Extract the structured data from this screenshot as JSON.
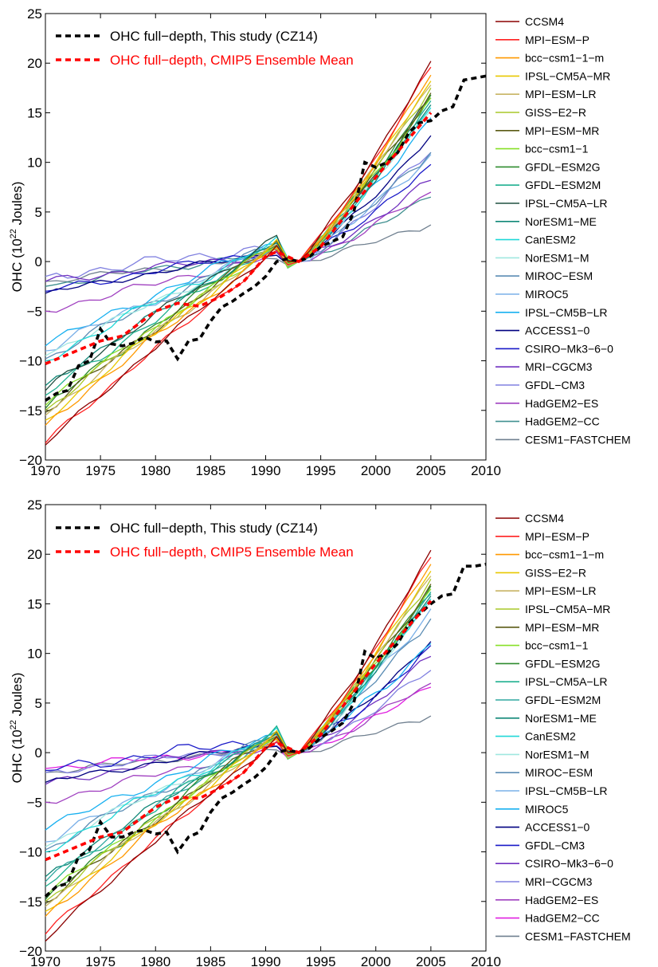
{
  "chart_data": [
    {
      "type": "line",
      "ylabel_prefix": "OHC (10",
      "ylabel_exp": "22",
      "ylabel_suffix": " Joules)",
      "xlim": [
        1970,
        2010
      ],
      "ylim": [
        -20,
        25
      ],
      "xticks": [
        1970,
        1975,
        1980,
        1985,
        1990,
        1995,
        2000,
        2005,
        2010
      ],
      "yticks": [
        -20,
        -15,
        -10,
        -5,
        0,
        5,
        10,
        15,
        20,
        25
      ],
      "grid": false,
      "highlight_series": [
        {
          "name": "OHC full−depth, This study (CZ14)",
          "color": "#000000",
          "points": [
            [
              1970,
              -14.0
            ],
            [
              1971,
              -13.3
            ],
            [
              1972,
              -13.0
            ],
            [
              1973,
              -10.5
            ],
            [
              1974,
              -10.0
            ],
            [
              1975,
              -6.8
            ],
            [
              1976,
              -8.3
            ],
            [
              1977,
              -8.5
            ],
            [
              1978,
              -8.2
            ],
            [
              1979,
              -7.6
            ],
            [
              1980,
              -8.1
            ],
            [
              1981,
              -8.0
            ],
            [
              1982,
              -9.8
            ],
            [
              1983,
              -8.0
            ],
            [
              1984,
              -7.8
            ],
            [
              1985,
              -6.0
            ],
            [
              1986,
              -4.6
            ],
            [
              1987,
              -4.0
            ],
            [
              1988,
              -3.2
            ],
            [
              1989,
              -2.5
            ],
            [
              1990,
              -1.5
            ],
            [
              1991,
              0.0
            ],
            [
              1992,
              0.3
            ],
            [
              1993,
              0.0
            ],
            [
              1994,
              0.5
            ],
            [
              1995,
              1.5
            ],
            [
              1996,
              2.0
            ],
            [
              1997,
              2.5
            ],
            [
              1998,
              5.0
            ],
            [
              1999,
              10.0
            ],
            [
              2000,
              9.5
            ],
            [
              2001,
              10.0
            ],
            [
              2002,
              11.0
            ],
            [
              2003,
              13.0
            ],
            [
              2004,
              14.0
            ],
            [
              2005,
              14.2
            ],
            [
              2006,
              15.2
            ],
            [
              2007,
              15.6
            ],
            [
              2008,
              18.3
            ],
            [
              2009,
              18.5
            ],
            [
              2010,
              18.7
            ]
          ]
        },
        {
          "name": "OHC full−depth, CMIP5 Ensemble Mean",
          "color": "#ff0000",
          "points": [
            [
              1970,
              -10.3
            ],
            [
              1975,
              -8.0
            ],
            [
              1977,
              -7.5
            ],
            [
              1980,
              -5.0
            ],
            [
              1982,
              -4.2
            ],
            [
              1984,
              -4.5
            ],
            [
              1986,
              -3.5
            ],
            [
              1988,
              -2.0
            ],
            [
              1990,
              0.5
            ],
            [
              1991,
              1.0
            ],
            [
              1993,
              0.0
            ],
            [
              1995,
              1.5
            ],
            [
              2000,
              8.5
            ],
            [
              2005,
              15.0
            ]
          ]
        }
      ],
      "series": [
        {
          "name": "CCSM4",
          "color": "#8b0000",
          "start": -18.5,
          "peak": 1.5,
          "end": 20.2,
          "wobble": 0.4
        },
        {
          "name": "MPI−ESM−P",
          "color": "#ff2020",
          "start": -18.3,
          "peak": 1.0,
          "end": 19.6,
          "wobble": 0.4
        },
        {
          "name": "bcc−csm1−1−m",
          "color": "#ff9900",
          "start": -16.5,
          "peak": 1.5,
          "end": 18.8,
          "wobble": 0.5
        },
        {
          "name": "IPSL−CM5A−MR",
          "color": "#e8c800",
          "start": -16.0,
          "peak": 1.8,
          "end": 18.2,
          "wobble": 0.5
        },
        {
          "name": "MPI−ESM−LR",
          "color": "#c8b464",
          "start": -15.5,
          "peak": 1.5,
          "end": 17.8,
          "wobble": 0.5
        },
        {
          "name": "GISS−E2−R",
          "color": "#a8c828",
          "start": -15.0,
          "peak": 1.8,
          "end": 17.5,
          "wobble": 0.5
        },
        {
          "name": "MPI−ESM−MR",
          "color": "#5a5a14",
          "start": -15.2,
          "peak": 2.0,
          "end": 17.0,
          "wobble": 0.5
        },
        {
          "name": "bcc−csm1−1",
          "color": "#88e028",
          "start": -14.5,
          "peak": 1.5,
          "end": 16.5,
          "wobble": 0.5
        },
        {
          "name": "GFDL−ESM2G",
          "color": "#2e8b2e",
          "start": -14.8,
          "peak": 2.2,
          "end": 16.8,
          "wobble": 0.6
        },
        {
          "name": "GFDL−ESM2M",
          "color": "#20b090",
          "start": -13.5,
          "peak": 2.0,
          "end": 16.2,
          "wobble": 0.6
        },
        {
          "name": "IPSL−CM5A−LR",
          "color": "#205040",
          "start": -13.0,
          "peak": 2.5,
          "end": 16.5,
          "wobble": 0.5
        },
        {
          "name": "NorESM1−ME",
          "color": "#108878",
          "start": -12.5,
          "peak": 2.0,
          "end": 15.8,
          "wobble": 0.5
        },
        {
          "name": "CanESM2",
          "color": "#20d8d8",
          "start": -10.0,
          "peak": 2.0,
          "end": 15.5,
          "wobble": 0.6
        },
        {
          "name": "NorESM1−M",
          "color": "#a0e8e0",
          "start": -9.5,
          "peak": 1.5,
          "end": 15.2,
          "wobble": 0.5
        },
        {
          "name": "MIROC−ESM",
          "color": "#5a8cb4",
          "start": -9.8,
          "peak": 1.8,
          "end": 11.0,
          "wobble": 0.6
        },
        {
          "name": "MIROC5",
          "color": "#7ab0e8",
          "start": -9.0,
          "peak": 1.5,
          "end": 10.8,
          "wobble": 0.6
        },
        {
          "name": "IPSL−CM5B−LR",
          "color": "#18b0f0",
          "start": -8.5,
          "peak": 2.0,
          "end": 14.5,
          "wobble": 0.6
        },
        {
          "name": "ACCESS1−0",
          "color": "#000080",
          "start": -3.2,
          "peak": 1.0,
          "end": 12.7,
          "wobble": 0.4
        },
        {
          "name": "CSIRO−Mk3−6−0",
          "color": "#1a1ac8",
          "start": -3.0,
          "peak": 1.2,
          "end": 9.8,
          "wobble": 0.5
        },
        {
          "name": "MRI−CGCM3",
          "color": "#7030c0",
          "start": -2.0,
          "peak": 0.8,
          "end": 8.2,
          "wobble": 0.5
        },
        {
          "name": "GFDL−CM3",
          "color": "#8080e0",
          "start": -1.5,
          "peak": 1.5,
          "end": 11.0,
          "wobble": 0.7
        },
        {
          "name": "HadGEM2−ES",
          "color": "#a040c0",
          "start": -5.0,
          "peak": 0.6,
          "end": 7.0,
          "wobble": 0.5
        },
        {
          "name": "HadGEM2−CC",
          "color": "#409090",
          "start": -2.5,
          "peak": 1.0,
          "end": 6.5,
          "wobble": 0.5
        },
        {
          "name": "CESM1−FASTCHEM",
          "color": "#708090",
          "start": -2.0,
          "peak": 0.5,
          "end": 3.7,
          "wobble": 0.4
        }
      ]
    },
    {
      "type": "line",
      "ylabel_prefix": "OHC (10",
      "ylabel_exp": "22",
      "ylabel_suffix": " Joules)",
      "xlim": [
        1970,
        2010
      ],
      "ylim": [
        -20,
        25
      ],
      "xticks": [
        1970,
        1975,
        1980,
        1985,
        1990,
        1995,
        2000,
        2005,
        2010
      ],
      "yticks": [
        -20,
        -15,
        -10,
        -5,
        0,
        5,
        10,
        15,
        20,
        25
      ],
      "grid": false,
      "highlight_series": [
        {
          "name": "OHC full−depth, This study (CZ14)",
          "color": "#000000",
          "points": [
            [
              1970,
              -14.5
            ],
            [
              1971,
              -13.5
            ],
            [
              1972,
              -13.2
            ],
            [
              1973,
              -10.5
            ],
            [
              1974,
              -9.8
            ],
            [
              1975,
              -7.0
            ],
            [
              1976,
              -8.5
            ],
            [
              1977,
              -8.5
            ],
            [
              1978,
              -8.0
            ],
            [
              1979,
              -7.8
            ],
            [
              1980,
              -8.2
            ],
            [
              1981,
              -8.0
            ],
            [
              1982,
              -10.0
            ],
            [
              1983,
              -8.5
            ],
            [
              1984,
              -8.0
            ],
            [
              1985,
              -6.0
            ],
            [
              1986,
              -4.6
            ],
            [
              1987,
              -4.0
            ],
            [
              1988,
              -3.2
            ],
            [
              1989,
              -2.5
            ],
            [
              1990,
              -1.5
            ],
            [
              1991,
              0.0
            ],
            [
              1992,
              0.3
            ],
            [
              1993,
              0.0
            ],
            [
              1994,
              0.5
            ],
            [
              1995,
              1.5
            ],
            [
              1996,
              2.2
            ],
            [
              1997,
              3.0
            ],
            [
              1998,
              5.0
            ],
            [
              1999,
              10.2
            ],
            [
              2000,
              9.5
            ],
            [
              2001,
              10.0
            ],
            [
              2002,
              11.0
            ],
            [
              2003,
              13.0
            ],
            [
              2004,
              14.0
            ],
            [
              2005,
              15.0
            ],
            [
              2006,
              15.8
            ],
            [
              2007,
              16.0
            ],
            [
              2008,
              18.8
            ],
            [
              2009,
              18.8
            ],
            [
              2010,
              19.0
            ]
          ]
        },
        {
          "name": "OHC full−depth, CMIP5 Ensemble Mean",
          "color": "#ff0000",
          "points": [
            [
              1970,
              -10.8
            ],
            [
              1975,
              -8.5
            ],
            [
              1977,
              -8.0
            ],
            [
              1980,
              -5.5
            ],
            [
              1982,
              -4.5
            ],
            [
              1984,
              -4.6
            ],
            [
              1986,
              -3.5
            ],
            [
              1988,
              -2.0
            ],
            [
              1990,
              0.5
            ],
            [
              1991,
              1.0
            ],
            [
              1993,
              0.0
            ],
            [
              1995,
              1.8
            ],
            [
              2000,
              9.0
            ],
            [
              2005,
              15.3
            ]
          ]
        }
      ],
      "series": [
        {
          "name": "CCSM4",
          "color": "#8b0000",
          "start": -19.0,
          "peak": 1.5,
          "end": 20.4,
          "wobble": 0.4
        },
        {
          "name": "MPI−ESM−P",
          "color": "#ff2020",
          "start": -18.3,
          "peak": 1.0,
          "end": 19.7,
          "wobble": 0.4
        },
        {
          "name": "bcc−csm1−1−m",
          "color": "#ff9900",
          "start": -16.5,
          "peak": 1.5,
          "end": 19.0,
          "wobble": 0.5
        },
        {
          "name": "GISS−E2−R",
          "color": "#e8c800",
          "start": -16.0,
          "peak": 1.8,
          "end": 18.3,
          "wobble": 0.5
        },
        {
          "name": "MPI−ESM−LR",
          "color": "#c8b464",
          "start": -15.5,
          "peak": 1.5,
          "end": 17.8,
          "wobble": 0.5
        },
        {
          "name": "IPSL−CM5A−MR",
          "color": "#a8c828",
          "start": -15.0,
          "peak": 1.8,
          "end": 17.5,
          "wobble": 0.5
        },
        {
          "name": "MPI−ESM−MR",
          "color": "#5a5a14",
          "start": -15.2,
          "peak": 2.0,
          "end": 17.0,
          "wobble": 0.5
        },
        {
          "name": "bcc−csm1−1",
          "color": "#88e028",
          "start": -14.5,
          "peak": 1.5,
          "end": 16.5,
          "wobble": 0.5
        },
        {
          "name": "GFDL−ESM2G",
          "color": "#2e8b2e",
          "start": -14.8,
          "peak": 2.2,
          "end": 16.8,
          "wobble": 0.6
        },
        {
          "name": "IPSL−CM5A−LR",
          "color": "#20b090",
          "start": -13.5,
          "peak": 2.5,
          "end": 16.2,
          "wobble": 0.6
        },
        {
          "name": "GFDL−ESM2M",
          "color": "#30a8a0",
          "start": -13.0,
          "peak": 2.0,
          "end": 16.0,
          "wobble": 0.5
        },
        {
          "name": "NorESM1−ME",
          "color": "#108878",
          "start": -12.5,
          "peak": 2.0,
          "end": 15.8,
          "wobble": 0.5
        },
        {
          "name": "CanESM2",
          "color": "#20d8d8",
          "start": -10.0,
          "peak": 2.0,
          "end": 15.5,
          "wobble": 0.6
        },
        {
          "name": "NorESM1−M",
          "color": "#a0e8e0",
          "start": -9.5,
          "peak": 1.5,
          "end": 15.2,
          "wobble": 0.5
        },
        {
          "name": "MIROC−ESM",
          "color": "#5a8cb4",
          "start": -9.8,
          "peak": 1.8,
          "end": 13.5,
          "wobble": 0.6
        },
        {
          "name": "IPSL−CM5B−LR",
          "color": "#7ab0e8",
          "start": -9.0,
          "peak": 1.5,
          "end": 14.5,
          "wobble": 0.6
        },
        {
          "name": "MIROC5",
          "color": "#18b0f0",
          "start": -7.8,
          "peak": 2.0,
          "end": 11.0,
          "wobble": 0.6
        },
        {
          "name": "ACCESS1−0",
          "color": "#000080",
          "start": -3.0,
          "peak": 1.0,
          "end": 11.2,
          "wobble": 0.4
        },
        {
          "name": "GFDL−CM3",
          "color": "#1a1ac8",
          "start": -1.8,
          "peak": 1.5,
          "end": 10.8,
          "wobble": 0.7
        },
        {
          "name": "CSIRO−Mk3−6−0",
          "color": "#7030c0",
          "start": -3.2,
          "peak": 1.2,
          "end": 9.7,
          "wobble": 0.5
        },
        {
          "name": "MRI−CGCM3",
          "color": "#8080e0",
          "start": -2.0,
          "peak": 0.8,
          "end": 8.3,
          "wobble": 0.5
        },
        {
          "name": "HadGEM2−ES",
          "color": "#a040c0",
          "start": -5.0,
          "peak": 0.6,
          "end": 7.0,
          "wobble": 0.5
        },
        {
          "name": "HadGEM2−CC",
          "color": "#e020e0",
          "start": -1.6,
          "peak": 0.5,
          "end": 6.6,
          "wobble": 0.5
        },
        {
          "name": "CESM1−FASTCHEM",
          "color": "#708090",
          "start": -2.0,
          "peak": 0.5,
          "end": 3.7,
          "wobble": 0.4
        }
      ]
    }
  ]
}
